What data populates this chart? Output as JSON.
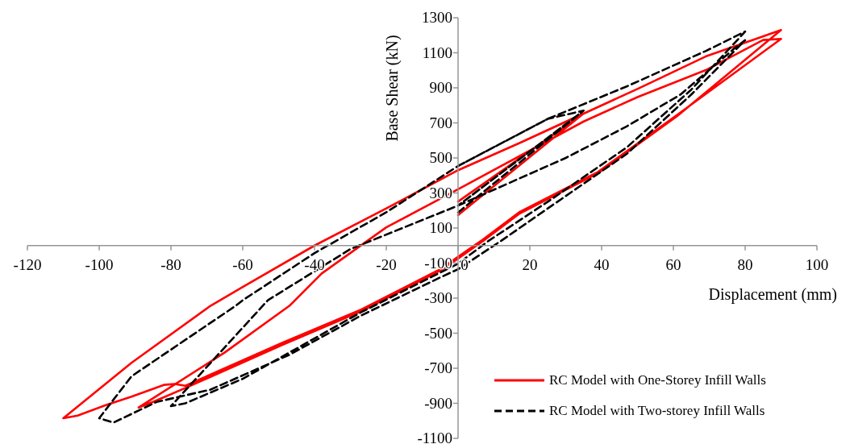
{
  "chart_data": {
    "type": "line",
    "xlabel": "Displacement (mm)",
    "ylabel": "Base Shear (kN)",
    "xlim": [
      -120,
      100
    ],
    "xticks": [
      -120,
      -100,
      -80,
      -60,
      -40,
      -20,
      0,
      20,
      40,
      60,
      80,
      100
    ],
    "ylim": [
      -1100,
      1300
    ],
    "yticks": [
      -1100,
      -900,
      -700,
      -500,
      -300,
      -100,
      100,
      300,
      500,
      700,
      900,
      1100,
      1300
    ],
    "grid": false,
    "legend": "bottom right",
    "marker": "none",
    "series": [
      {
        "name": "RC Model with One-Storey Infill Walls",
        "color": "#ff0000",
        "line_style": "solid",
        "x": [
          0,
          35,
          0,
          35,
          17,
          0,
          -20,
          -40,
          -60,
          -69,
          -91,
          -110,
          -106,
          -98,
          -91,
          -82,
          -79,
          -76,
          -49,
          -27,
          -5,
          7,
          17,
          39,
          61,
          90,
          85,
          69,
          50,
          35,
          0,
          -20,
          -38,
          -47,
          -65,
          -89,
          -85,
          -75,
          -49,
          -27,
          -5,
          0,
          7,
          17,
          39,
          61,
          90,
          83,
          69,
          50,
          17,
          0
        ],
        "values": [
          174,
          754,
          251,
          754,
          584,
          430,
          212,
          0,
          -236,
          -344,
          -669,
          -985,
          -970,
          -909,
          -862,
          -795,
          -790,
          -800,
          -555,
          -365,
          -135,
          35,
          190,
          420,
          745,
          1179,
          1173,
          1001,
          847,
          708,
          321,
          104,
          -159,
          -344,
          -610,
          -924,
          -892,
          -804,
          -567,
          -375,
          -143,
          -74,
          27,
          181,
          413,
          738,
          1230,
          1179,
          1079,
          894,
          584,
          430
        ]
      },
      {
        "name": "RC Model with Two-storey Infill Walls",
        "color": "#000000",
        "line_style": "dashed",
        "x": [
          0,
          35,
          0,
          35,
          25,
          0,
          -20,
          -40,
          -60,
          -62,
          -91,
          -100,
          -96,
          -84,
          -69,
          -47,
          -27,
          -5,
          0,
          12,
          25,
          47,
          65,
          80,
          77,
          62,
          47,
          30,
          0,
          -30,
          -53,
          -80,
          -76,
          -60,
          -27,
          0,
          8.5,
          25,
          47,
          65,
          80,
          69,
          47,
          25,
          0
        ],
        "values": [
          189,
          770,
          228,
          770,
          723,
          454,
          190,
          -43,
          -312,
          -344,
          -746,
          -985,
          -1010,
          -892,
          -822,
          -623,
          -399,
          -182,
          -135,
          27,
          212,
          523,
          862,
          1172,
          1125,
          862,
          680,
          500,
          228,
          -20,
          -312,
          -916,
          -900,
          -760,
          -380,
          -103,
          27,
          250,
          560,
          890,
          1221,
          1110,
          908,
          723,
          454
        ]
      }
    ]
  }
}
